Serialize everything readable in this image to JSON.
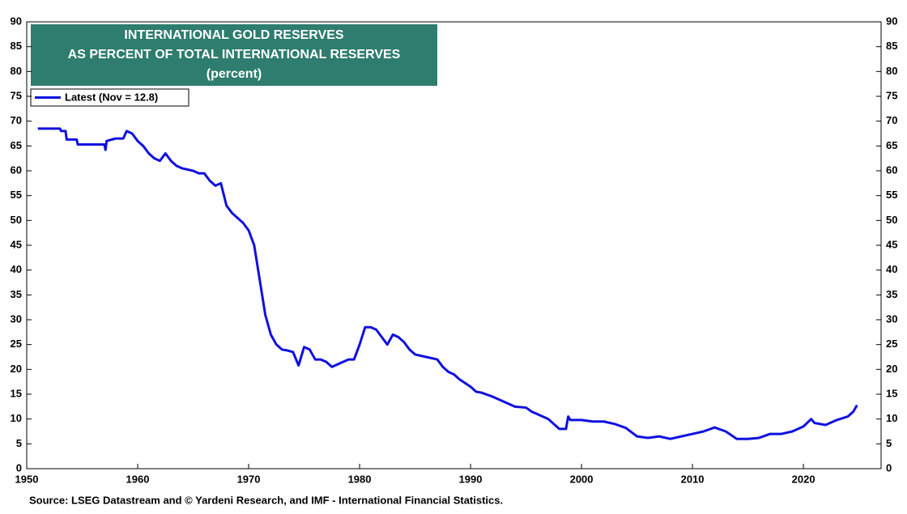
{
  "chart_data": {
    "type": "line",
    "title": "INTERNATIONAL GOLD RESERVES",
    "subtitle": "AS PERCENT OF TOTAL INTERNATIONAL RESERVES",
    "units": "(percent)",
    "source": "Source: LSEG Datastream and © Yardeni Research, and IMF - International Financial Statistics.",
    "x": [
      1951,
      1953,
      1953.1,
      1953.5,
      1953.6,
      1954.5,
      1954.6,
      1957,
      1957.1,
      1957.2,
      1958,
      1958.7,
      1959,
      1959.5,
      1960,
      1960.5,
      1961,
      1961.5,
      1962,
      1962.5,
      1963,
      1963.5,
      1964,
      1965,
      1965.5,
      1966,
      1966.5,
      1967,
      1967.5,
      1968,
      1968.5,
      1969,
      1969.5,
      1970,
      1970.5,
      1971,
      1971.5,
      1972,
      1972.5,
      1973,
      1973.5,
      1974,
      1974.5,
      1975,
      1975.5,
      1976,
      1976.5,
      1977,
      1977.5,
      1978,
      1978.5,
      1979,
      1979.5,
      1980,
      1980.5,
      1981,
      1981.5,
      1982,
      1982.5,
      1983,
      1983.5,
      1984,
      1984.5,
      1985,
      1986,
      1987,
      1987.5,
      1988,
      1988.5,
      1989,
      1990,
      1990.5,
      1991,
      1992,
      1993,
      1994,
      1995,
      1995.5,
      1996,
      1997,
      1997.5,
      1998,
      1998.6,
      1998.8,
      1999,
      2000,
      2001,
      2002,
      2003,
      2004,
      2005,
      2006,
      2007,
      2008,
      2009,
      2010,
      2011,
      2012,
      2013,
      2014,
      2015,
      2016,
      2017,
      2018,
      2019,
      2020,
      2020.7,
      2021,
      2022,
      2023,
      2024,
      2024.5,
      2024.83
    ],
    "series": [
      {
        "name": "Latest (Nov = 12.8)",
        "color": "#1010e0",
        "values": [
          68.5,
          68.5,
          68,
          68,
          66.3,
          66.3,
          65.3,
          65.3,
          64.2,
          66,
          66.5,
          66.5,
          68,
          67.5,
          66,
          65,
          63.5,
          62.5,
          62,
          63.5,
          62,
          61,
          60.5,
          60,
          59.5,
          59.5,
          58,
          57,
          57.5,
          53,
          51.5,
          50.5,
          49.5,
          48,
          45,
          38,
          31,
          27,
          25,
          24,
          23.8,
          23.5,
          20.8,
          24.5,
          24,
          22,
          22,
          21.5,
          20.5,
          21,
          21.5,
          22,
          22,
          25,
          28.5,
          28.5,
          28,
          26.5,
          25,
          27,
          26.5,
          25.5,
          24,
          23,
          22.5,
          22,
          20.5,
          19.5,
          19,
          18,
          16.5,
          15.5,
          15.3,
          14.5,
          13.5,
          12.5,
          12.3,
          11.5,
          11,
          10,
          9,
          8,
          8,
          10.5,
          9.8,
          9.8,
          9.5,
          9.5,
          9,
          8.2,
          6.5,
          6.2,
          6.5,
          6,
          6.5,
          7,
          7.5,
          8.3,
          7.5,
          6,
          6,
          6.2,
          7,
          7,
          7.5,
          8.5,
          10,
          9.2,
          8.8,
          9.8,
          10.5,
          11.5,
          12.8
        ]
      }
    ],
    "xlim": [
      1950,
      2027
    ],
    "xticks": [
      1950,
      1960,
      1970,
      1980,
      1990,
      2000,
      2010,
      2020
    ],
    "ylim": [
      0,
      90
    ],
    "yticks": [
      0,
      5,
      10,
      15,
      20,
      25,
      30,
      35,
      40,
      45,
      50,
      55,
      60,
      65,
      70,
      75,
      80,
      85,
      90
    ],
    "title_color": "#2e7d6e"
  }
}
